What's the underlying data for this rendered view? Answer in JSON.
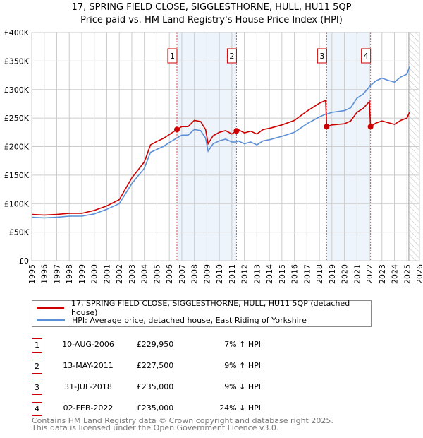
{
  "title": "17, SPRING FIELD CLOSE, SIGGLESTHORNE, HULL, HU11 5QP",
  "subtitle": "Price paid vs. HM Land Registry's House Price Index (HPI)",
  "chart_data": {
    "type": "line",
    "xlim": [
      1995,
      2026
    ],
    "ylim": [
      0,
      400000
    ],
    "yticks": [
      "£0",
      "£50K",
      "£100K",
      "£150K",
      "£200K",
      "£250K",
      "£300K",
      "£350K",
      "£400K"
    ],
    "xticks": [
      "1995",
      "1996",
      "1997",
      "1998",
      "1999",
      "2000",
      "2001",
      "2002",
      "2003",
      "2004",
      "2005",
      "2006",
      "2007",
      "2008",
      "2009",
      "2010",
      "2011",
      "2012",
      "2013",
      "2014",
      "2015",
      "2016",
      "2017",
      "2018",
      "2019",
      "2020",
      "2021",
      "2022",
      "2023",
      "2024",
      "2025",
      "2026"
    ],
    "series": [
      {
        "name": "17, SPRING FIELD CLOSE, SIGGLESTHORNE, HULL, HU11 5QP (detached house)",
        "color": "#cc0000",
        "x": [
          1995,
          1996,
          1997,
          1998,
          1999,
          2000,
          2001,
          2002,
          2003,
          2004,
          2004.5,
          2005,
          2005.5,
          2006,
          2006.6,
          2007,
          2007.5,
          2008,
          2008.5,
          2008.9,
          2009.1,
          2009.5,
          2010,
          2010.5,
          2011,
          2011.37,
          2011.5,
          2012,
          2012.5,
          2013,
          2013.5,
          2014,
          2015,
          2016,
          2017,
          2018,
          2018.5,
          2018.58,
          2019,
          2020,
          2020.5,
          2021,
          2021.5,
          2022,
          2022.09,
          2022.5,
          2023,
          2023.5,
          2024,
          2024.5,
          2025,
          2025.2
        ],
        "y": [
          81000,
          80000,
          81000,
          83000,
          83000,
          88000,
          96000,
          107000,
          145000,
          173000,
          203000,
          209000,
          214000,
          221000,
          229950,
          235000,
          235000,
          246000,
          244000,
          230000,
          205000,
          219000,
          225000,
          228000,
          222000,
          227500,
          230000,
          224000,
          227000,
          222000,
          230000,
          232000,
          238000,
          246000,
          262000,
          276000,
          281000,
          235000,
          238000,
          240000,
          245000,
          260000,
          267000,
          279000,
          235000,
          241000,
          245000,
          242000,
          239000,
          246000,
          250000,
          260000
        ]
      },
      {
        "name": "HPI: Average price, detached house, East Riding of Yorkshire",
        "color": "#5b8fd6",
        "x": [
          1995,
          1996,
          1997,
          1998,
          1999,
          2000,
          2001,
          2002,
          2003,
          2004,
          2004.5,
          2005,
          2005.5,
          2006,
          2006.6,
          2007,
          2007.5,
          2008,
          2008.5,
          2008.9,
          2009.1,
          2009.5,
          2010,
          2010.5,
          2011,
          2011.37,
          2011.5,
          2012,
          2012.5,
          2013,
          2013.5,
          2014,
          2015,
          2016,
          2017,
          2018,
          2018.5,
          2018.58,
          2019,
          2020,
          2020.5,
          2021,
          2021.5,
          2022,
          2022.09,
          2022.5,
          2023,
          2023.5,
          2024,
          2024.5,
          2025,
          2025.2
        ],
        "y": [
          76000,
          75000,
          76000,
          78000,
          78000,
          82000,
          90000,
          100000,
          135000,
          162000,
          190000,
          195000,
          200000,
          207000,
          215000,
          220000,
          220000,
          230000,
          228000,
          215000,
          192000,
          205000,
          210000,
          213000,
          208000,
          208000,
          210000,
          205000,
          208000,
          203000,
          210000,
          212000,
          218000,
          225000,
          240000,
          252000,
          257000,
          257000,
          260000,
          263000,
          268000,
          285000,
          292000,
          305000,
          307000,
          315000,
          320000,
          316000,
          313000,
          322000,
          327000,
          340000
        ]
      }
    ],
    "sales": [
      {
        "label": "1",
        "x": 2006.61,
        "y": 229950
      },
      {
        "label": "2",
        "x": 2011.37,
        "y": 227500
      },
      {
        "label": "3",
        "x": 2018.58,
        "y": 235000
      },
      {
        "label": "4",
        "x": 2022.09,
        "y": 235000
      }
    ],
    "shaded": [
      [
        2006.61,
        2011.37
      ],
      [
        2018.58,
        2022.09
      ]
    ],
    "forecast_from": 2025.15
  },
  "legend": {
    "property": "17, SPRING FIELD CLOSE, SIGGLESTHORNE, HULL, HU11 5QP (detached house)",
    "hpi": "HPI: Average price, detached house, East Riding of Yorkshire"
  },
  "transactions": [
    {
      "num": "1",
      "date": "10-AUG-2006",
      "price": "£229,950",
      "hpi": "7% ↑ HPI"
    },
    {
      "num": "2",
      "date": "13-MAY-2011",
      "price": "£227,500",
      "hpi": "9% ↑ HPI"
    },
    {
      "num": "3",
      "date": "31-JUL-2018",
      "price": "£235,000",
      "hpi": "9% ↓ HPI"
    },
    {
      "num": "4",
      "date": "02-FEB-2022",
      "price": "£235,000",
      "hpi": "24% ↓ HPI"
    }
  ],
  "footer": {
    "line1": "Contains HM Land Registry data © Crown copyright and database right 2025.",
    "line2": "This data is licensed under the Open Government Licence v3.0."
  }
}
